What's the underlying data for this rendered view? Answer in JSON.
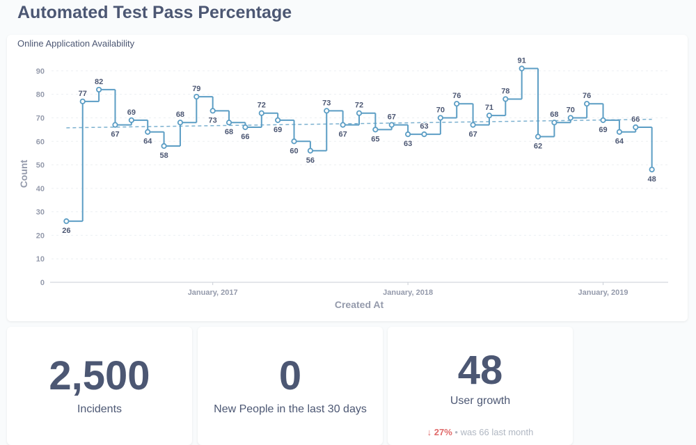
{
  "header": {
    "title": "Automated Test Pass Percentage"
  },
  "chart_data": {
    "type": "line",
    "step": "after",
    "trend_line": true,
    "grid": true,
    "title": "Online Application Availability",
    "x_label": "Created At",
    "y_label": "Count",
    "color": "#5b9dc4",
    "x": [
      "2016-04",
      "2016-05",
      "2016-06",
      "2016-07",
      "2016-08",
      "2016-09",
      "2016-10",
      "2016-11",
      "2016-12",
      "2017-01",
      "2017-02",
      "2017-03",
      "2017-04",
      "2017-05",
      "2017-06",
      "2017-07",
      "2017-08",
      "2017-09",
      "2017-10",
      "2017-11",
      "2017-12",
      "2018-01",
      "2018-02",
      "2018-03",
      "2018-04",
      "2018-05",
      "2018-06",
      "2018-07",
      "2018-08",
      "2018-09",
      "2018-10",
      "2018-11",
      "2018-12",
      "2019-01",
      "2019-02",
      "2019-03",
      "2019-04"
    ],
    "series": [
      {
        "name": "Count",
        "color": "#5b9dc4",
        "values": [
          26,
          77,
          82,
          67,
          69,
          64,
          58,
          68,
          79,
          73,
          68,
          66,
          72,
          69,
          60,
          56,
          73,
          67,
          72,
          65,
          67,
          63,
          63,
          70,
          76,
          67,
          71,
          78,
          91,
          62,
          68,
          70,
          76,
          69,
          64,
          66,
          48
        ]
      }
    ],
    "xlim": [
      "2016-03",
      "2019-05"
    ],
    "xticks": [
      {
        "value": "2017-01",
        "label": "January, 2017"
      },
      {
        "value": "2018-01",
        "label": "January, 2018"
      },
      {
        "value": "2019-01",
        "label": "January, 2019"
      }
    ],
    "ylim": [
      0,
      95
    ],
    "yticks": [
      0,
      10,
      20,
      30,
      40,
      50,
      60,
      70,
      80,
      90
    ]
  },
  "cards": [
    {
      "value": "2,500",
      "label": "Incidents"
    },
    {
      "value": "0",
      "label": "New People in the last 30 days"
    },
    {
      "value": "48",
      "label": "User growth",
      "change": "27%",
      "comparison": "was 66 last month"
    }
  ]
}
